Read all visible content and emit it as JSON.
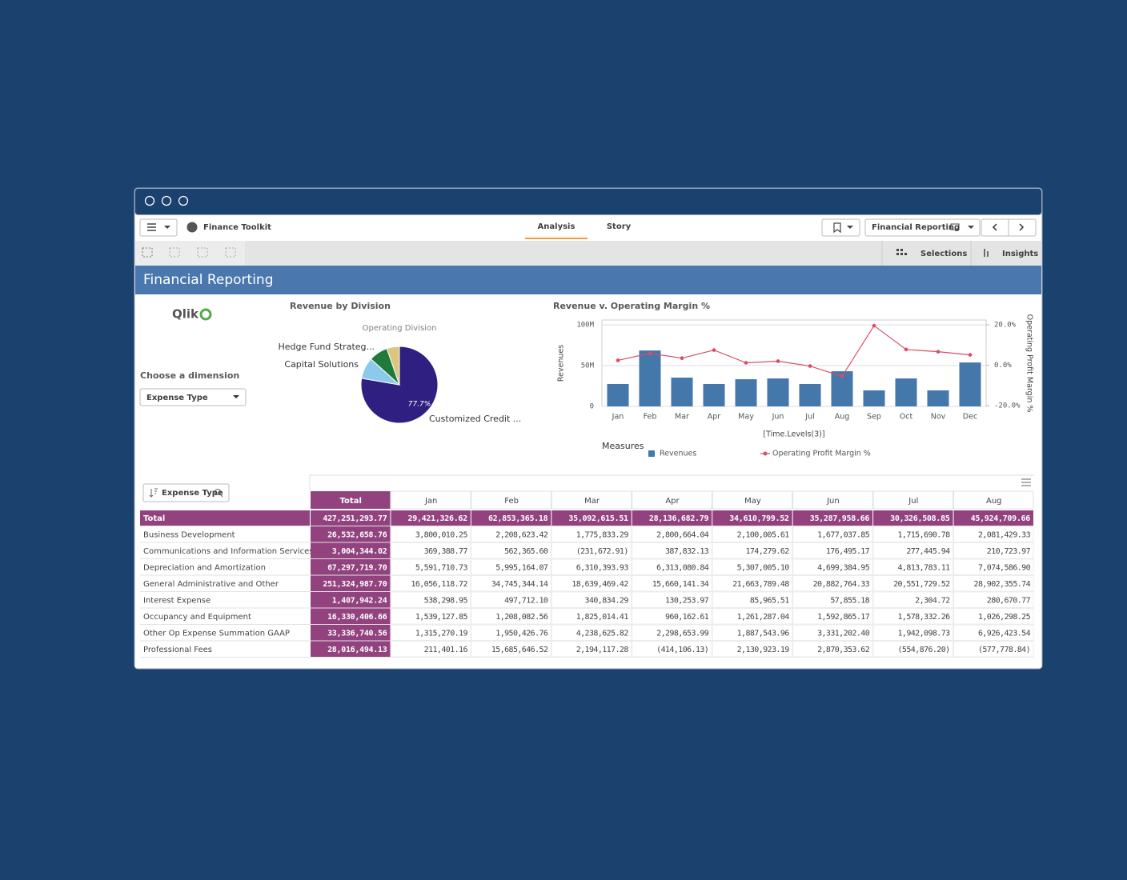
{
  "window": {
    "app_name": "Finance Toolkit",
    "tabs": [
      "Analysis",
      "Story"
    ],
    "sheet_selector": "Financial Reporting",
    "toolbar": [
      "Selections",
      "Insights"
    ]
  },
  "sheet_title": "Financial Reporting",
  "logo": "Qlik",
  "filter": {
    "label": "Choose a dimension",
    "value": "Expense Type"
  },
  "chart_data": [
    {
      "type": "pie",
      "title": "Revenue by Division",
      "subtitle": "Operating Division",
      "categories": [
        "Customized Credit ...",
        "Capital Solutions",
        "Hedge Fund Strateg...",
        null
      ],
      "values": [
        77.7,
        9,
        8,
        5.3
      ],
      "value_labels": [
        "77.7%",
        null,
        null,
        null
      ],
      "colors": [
        "#2e1f80",
        "#8ccaec",
        "#1f7a3c",
        "#dcc57c"
      ]
    },
    {
      "type": "combo",
      "title": "Revenue v. Operating Margin %",
      "categories": [
        "Jan",
        "Feb",
        "Mar",
        "Apr",
        "May",
        "Jun",
        "Jul",
        "Aug",
        "Sep",
        "Oct",
        "Nov",
        "Dec"
      ],
      "x_label": "[Time.Levels(3)]",
      "y_label": "Revenues",
      "y2_label": "Operating Profit Margin %",
      "ylim": [
        0,
        106000000
      ],
      "yticks": [
        0,
        {
          "value": 50000000,
          "label": "50M"
        },
        {
          "value": 100000000,
          "label": "100M"
        }
      ],
      "y2lim": [
        -20.4,
        22.4
      ],
      "y2ticks": [
        {
          "value": -20,
          "label": "-20.0%"
        },
        {
          "value": 0,
          "label": "0.0%"
        },
        {
          "value": 20,
          "label": "20.0%"
        }
      ],
      "grid": true,
      "legend_title": "Measures",
      "series": [
        {
          "name": "Revenues",
          "type": "bar",
          "color": "#4477aa",
          "values": [
            27500000,
            68600000,
            35300000,
            27500000,
            33300000,
            34300000,
            27500000,
            43100000,
            19600000,
            34300000,
            19600000,
            53900000
          ]
        },
        {
          "name": "Operating Profit Margin %",
          "type": "line",
          "axis": "y2",
          "color": "#dc4c64",
          "values": [
            2.4,
            5.9,
            3.5,
            7.5,
            1.2,
            2.0,
            -0.4,
            -5.5,
            19.6,
            7.8,
            6.7,
            5.1
          ]
        }
      ]
    }
  ],
  "table": {
    "dimension": "Expense Type",
    "columns": [
      "Total",
      "Jan",
      "Feb",
      "Mar",
      "Apr",
      "May",
      "Jun",
      "Jul",
      "Aug"
    ],
    "rows": [
      {
        "label": "Total",
        "cells": [
          "427,251,293.77",
          "29,421,326.62",
          "62,853,365.18",
          "35,092,615.51",
          "28,136,682.79",
          "34,610,799.52",
          "35,287,958.66",
          "30,326,508.85",
          "45,924,709.66"
        ]
      },
      {
        "label": "Business Development",
        "cells": [
          "26,532,658.76",
          "3,800,010.25",
          "2,208,623.42",
          "1,775,833.29",
          "2,800,664.04",
          "2,100,005.61",
          "1,677,037.85",
          "1,715,690.78",
          "2,081,429.33"
        ]
      },
      {
        "label": "Communications and Information Services",
        "cells": [
          "3,004,344.02",
          "369,388.77",
          "562,365.60",
          "(231,672.91)",
          "387,832.13",
          "174,279.62",
          "176,495.17",
          "277,445.94",
          "210,723.97"
        ]
      },
      {
        "label": "Depreciation and Amortization",
        "cells": [
          "67,297,719.70",
          "5,591,710.73",
          "5,995,164.07",
          "6,310,393.93",
          "6,313,080.84",
          "5,307,005.10",
          "4,699,384.95",
          "4,813,783.11",
          "7,074,586.90"
        ]
      },
      {
        "label": "General Administrative and Other",
        "cells": [
          "251,324,987.70",
          "16,056,118.72",
          "34,745,344.14",
          "18,639,469.42",
          "15,660,141.34",
          "21,663,789.48",
          "20,882,764.33",
          "20,551,729.52",
          "28,902,355.74"
        ]
      },
      {
        "label": "Interest Expense",
        "cells": [
          "1,407,942.24",
          "538,298.95",
          "497,712.10",
          "340,834.29",
          "130,253.97",
          "85,965.51",
          "57,855.18",
          "2,304.72",
          "280,670.77"
        ]
      },
      {
        "label": "Occupancy and Equipment",
        "cells": [
          "16,330,406.66",
          "1,539,127.85",
          "1,208,082.56",
          "1,825,014.41",
          "960,162.61",
          "1,261,287.04",
          "1,592,865.17",
          "1,578,332.26",
          "1,026,298.25"
        ]
      },
      {
        "label": "Other Op Expense Summation GAAP",
        "cells": [
          "33,336,740.56",
          "1,315,270.19",
          "1,950,426.76",
          "4,238,625.82",
          "2,298,653.99",
          "1,887,543.96",
          "3,331,202.40",
          "1,942,098.73",
          "6,926,423.54"
        ]
      },
      {
        "label": "Professional Fees",
        "cells": [
          "28,016,494.13",
          "211,401.16",
          "15,685,646.52",
          "2,194,117.28",
          "(414,106.13)",
          "2,130,923.19",
          "2,870,353.62",
          "(554,876.20)",
          "(577,778.84)"
        ]
      }
    ]
  }
}
